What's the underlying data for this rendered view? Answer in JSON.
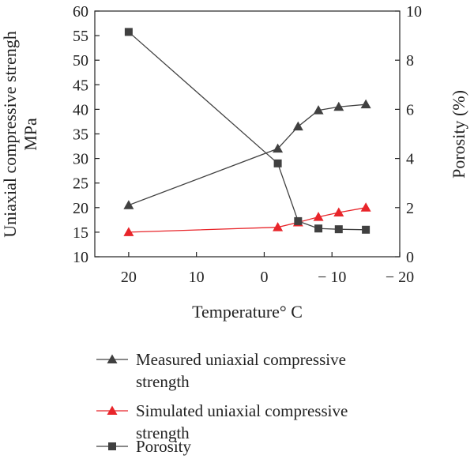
{
  "chart_data": {
    "type": "line",
    "xlabel": "Temperature° C",
    "ylabel": [
      "Uniaxial compressive strengh",
      "MPa"
    ],
    "y2label": "Porosity (%)",
    "xlim": [
      25,
      -20
    ],
    "x_ticks": [
      20,
      10,
      0,
      -10,
      -20
    ],
    "x_tick_labels": [
      "20",
      "10",
      "0",
      "− 10",
      "− 20"
    ],
    "ylim": [
      10,
      60
    ],
    "y_ticks": [
      10,
      15,
      20,
      25,
      30,
      35,
      40,
      45,
      50,
      55,
      60
    ],
    "y2lim": [
      0,
      10
    ],
    "y2_ticks": [
      0,
      2,
      4,
      6,
      8,
      10
    ],
    "grid": false,
    "legend_position": "below",
    "series": [
      {
        "name": "Measured uniaxial compressive strength",
        "legend_lines": [
          "Measured uniaxial compressive",
          "strength"
        ],
        "axis": "left",
        "marker": "triangle",
        "color": "#404040",
        "x": [
          20,
          -2,
          -5,
          -8,
          -11,
          -15
        ],
        "y": [
          20.5,
          32,
          36.5,
          39.8,
          40.5,
          41
        ]
      },
      {
        "name": "Simulated uniaxial compressive strength",
        "legend_lines": [
          "Simulated uniaxial compressive",
          "strength"
        ],
        "axis": "left",
        "marker": "triangle",
        "color": "#e8252a",
        "x": [
          20,
          -2,
          -5,
          -8,
          -11,
          -15
        ],
        "y": [
          15,
          16,
          17,
          18.1,
          19,
          20
        ]
      },
      {
        "name": "Porosity",
        "legend_lines": [
          "Porosity"
        ],
        "axis": "right",
        "marker": "square",
        "color": "#404040",
        "x": [
          20,
          -2,
          -5,
          -8,
          -11,
          -15
        ],
        "y": [
          9.15,
          3.8,
          1.45,
          1.15,
          1.12,
          1.1
        ]
      }
    ]
  }
}
